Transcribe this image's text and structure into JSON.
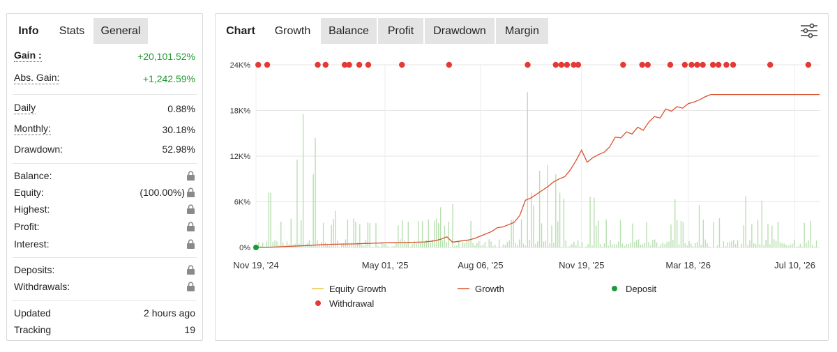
{
  "left_panel": {
    "tabs": [
      "Info",
      "Stats",
      "General"
    ],
    "rows": {
      "gain": {
        "label": "Gain :",
        "value": "+20,101.52%"
      },
      "abs_gain": {
        "label": "Abs. Gain:",
        "value": "+1,242.59%"
      },
      "daily": {
        "label": "Daily",
        "value": "0.88%"
      },
      "monthly": {
        "label": "Monthly:",
        "value": "30.18%"
      },
      "drawdown": {
        "label": "Drawdown:",
        "value": "52.98%"
      },
      "balance": {
        "label": "Balance:",
        "value": ""
      },
      "equity": {
        "label": "Equity:",
        "value": "(100.00%)"
      },
      "highest": {
        "label": "Highest:",
        "value": ""
      },
      "profit": {
        "label": "Profit:",
        "value": ""
      },
      "interest": {
        "label": "Interest:",
        "value": ""
      },
      "deposits": {
        "label": "Deposits:",
        "value": ""
      },
      "withdrawals": {
        "label": "Withdrawals:",
        "value": ""
      },
      "updated": {
        "label": "Updated",
        "value": "2 hours ago"
      },
      "tracking": {
        "label": "Tracking",
        "value": "19"
      }
    },
    "gain_color": "#1f9a2e",
    "lock_icon": "lock-icon"
  },
  "right_panel": {
    "header": "Chart",
    "tabs": [
      "Growth",
      "Balance",
      "Profit",
      "Drawdown",
      "Margin"
    ],
    "active_tab": "Growth",
    "settings_icon": "sliders-icon"
  },
  "chart_data": {
    "type": "line",
    "x_tick_labels": [
      "Nov 19, '24",
      "May 01, '25",
      "Aug 06, '25",
      "Nov 19, '25",
      "Mar 18, '26",
      "Jul 10, '26"
    ],
    "y_tick_labels": [
      "24K%",
      "18K%",
      "12K%",
      "6K%",
      "0%"
    ],
    "ylim": [
      0,
      24000
    ],
    "grid": true,
    "legend_placement": "bottom",
    "legend": [
      {
        "name": "Equity Growth",
        "color": "#e8c547",
        "marker": "line"
      },
      {
        "name": "Growth",
        "color": "#d9502e",
        "marker": "line"
      },
      {
        "name": "Deposit",
        "color": "#1a9a3a",
        "marker": "dot"
      },
      {
        "name": "Withdrawal",
        "color": "#e53935",
        "marker": "dot"
      }
    ],
    "series": [
      {
        "name": "Growth",
        "color": "#d9502e",
        "x": [
          0,
          0.05,
          0.15,
          0.3,
          0.45,
          0.6,
          0.7,
          0.8,
          0.9,
          0.96,
          1.0,
          1.02,
          1.05,
          1.1,
          1.15,
          1.2,
          1.25,
          1.27,
          1.3,
          1.35,
          1.4,
          1.45,
          1.5,
          1.55,
          1.6,
          1.65,
          1.7,
          1.75,
          1.8,
          1.85,
          1.9,
          1.95,
          2.0,
          2.05,
          2.1,
          2.15,
          2.2,
          2.25,
          2.3,
          2.35,
          2.4,
          2.45,
          2.5,
          2.55,
          2.6,
          2.65,
          2.7,
          2.75,
          2.8,
          2.85,
          2.9,
          2.95,
          3.0,
          3.05,
          3.1,
          3.15,
          3.2,
          3.25,
          3.3,
          3.35,
          3.4,
          3.45,
          3.5,
          3.55,
          3.6,
          3.65,
          3.7,
          3.75,
          3.8,
          3.85,
          3.9,
          3.95,
          4.0,
          4.05,
          4.1,
          4.15,
          4.2,
          4.25,
          4.3,
          4.35,
          4.4,
          4.45,
          4.5,
          4.55,
          4.6,
          4.65,
          4.7,
          4.75,
          4.8,
          4.85,
          4.9,
          4.95,
          5.0,
          5.02
        ],
        "values": [
          0,
          0,
          50,
          150,
          250,
          380,
          420,
          450,
          480,
          520,
          530,
          540,
          560,
          580,
          600,
          610,
          620,
          630,
          640,
          660,
          680,
          700,
          720,
          800,
          900,
          1100,
          1400,
          700,
          800,
          900,
          1000,
          1200,
          1500,
          1800,
          2100,
          2600,
          2700,
          3000,
          3300,
          4200,
          6200,
          6500,
          7000,
          7500,
          8000,
          8600,
          9000,
          9300,
          10200,
          11400,
          12800,
          11200,
          11800,
          12200,
          12500,
          13200,
          14500,
          14400,
          15200,
          14900,
          15800,
          15400,
          16500,
          17200,
          17000,
          18200,
          17900,
          18500,
          18300,
          18900,
          19100,
          19400,
          19800,
          20100,
          20101.52,
          20101.52,
          20101.52,
          20101.52,
          20101.52,
          20101.52,
          20101.52,
          20101.52,
          20101.52,
          20101.52,
          20101.52,
          20101.52,
          20101.52,
          20101.52,
          20101.52,
          20101.52,
          20101.52,
          20101.52,
          20101.52,
          20101.52
        ]
      }
    ],
    "deposit_points_x": [
      0
    ],
    "withdrawal_points_x": [
      0.02,
      0.1,
      0.55,
      0.62,
      0.79,
      0.83,
      0.92,
      1.0,
      1.3,
      1.72,
      2.42,
      2.67,
      2.72,
      2.77,
      2.83,
      2.87,
      3.27,
      3.44,
      3.49,
      3.69,
      3.82,
      3.88,
      3.93,
      3.98,
      4.07,
      4.12,
      4.19,
      4.25,
      4.58,
      4.92
    ]
  }
}
